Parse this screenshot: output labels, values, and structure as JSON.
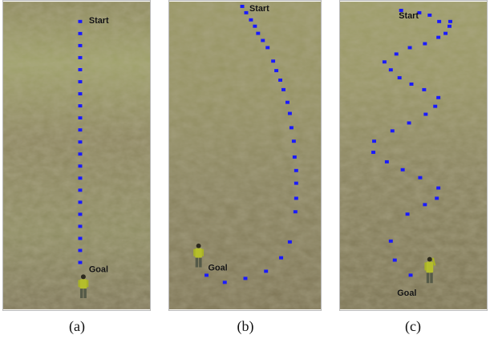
{
  "panels": [
    {
      "id": "a",
      "caption": "(a)",
      "start_label": "Start",
      "goal_label": "Goal"
    },
    {
      "id": "b",
      "caption": "(b)",
      "start_label": "Start",
      "goal_label": "Goal"
    },
    {
      "id": "c",
      "caption": "(c)",
      "start_label": "Start",
      "goal_label": "Goal"
    }
  ],
  "colors": {
    "path_marker": "#1a1aff",
    "terrain_light": "#9c9a62",
    "terrain_dark": "#6f6a4a",
    "figure_body": "#b9c22a",
    "figure_legs": "#5b5f4a"
  }
}
